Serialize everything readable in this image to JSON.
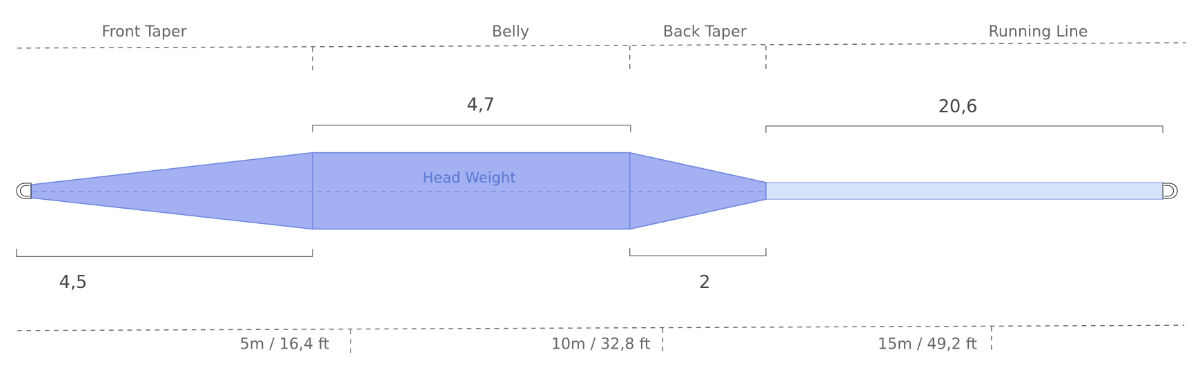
{
  "sections": {
    "front_taper": "Front Taper",
    "belly": "Belly",
    "back_taper": "Back Taper",
    "running_line": "Running Line"
  },
  "lengths": {
    "front_taper": "4,5",
    "belly": "4,7",
    "back_taper": "2",
    "running_line": "20,6"
  },
  "head_label": "Head Weight",
  "distance_marks": [
    "5m / 16,4 ft",
    "10m / 32,8 ft",
    "15m / 49,2 ft"
  ],
  "colors": {
    "head_fill": "#a3b1f3",
    "head_stroke": "#7088e0",
    "running_line_fill": "#d6e4fb",
    "head_label": "#5a78d0"
  }
}
